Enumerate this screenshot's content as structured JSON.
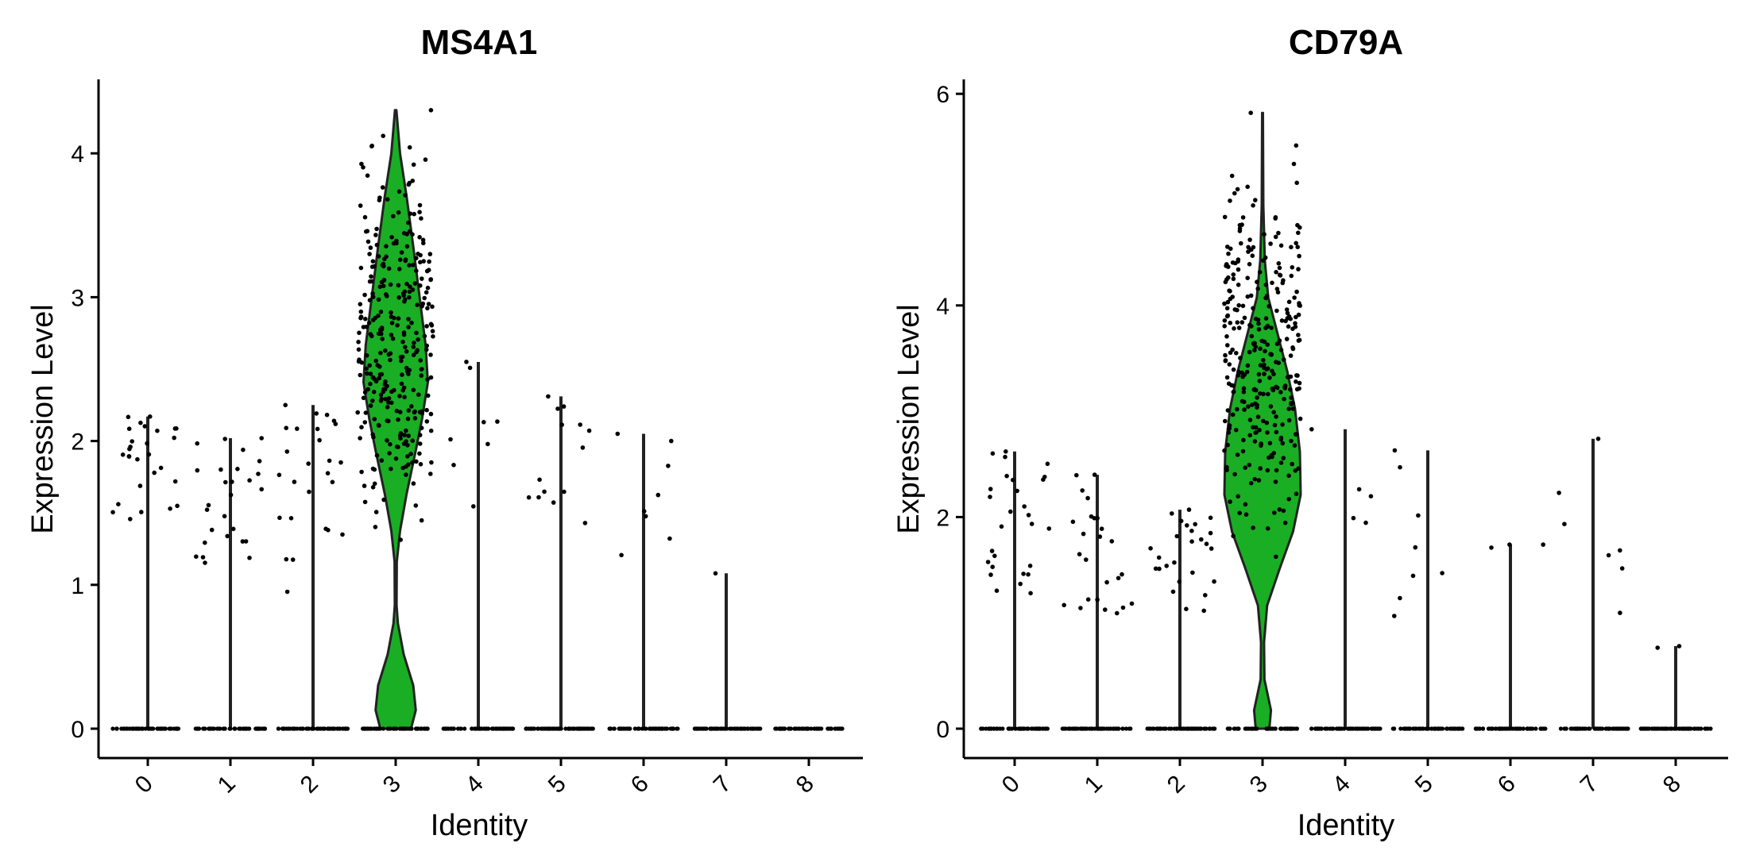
{
  "chart_data": [
    {
      "type": "violin",
      "title": "MS4A1",
      "xlabel": "Identity",
      "ylabel": "Expression Level",
      "categories": [
        "0",
        "1",
        "2",
        "3",
        "4",
        "5",
        "6",
        "7",
        "8"
      ],
      "yticks": [
        0,
        1,
        2,
        3,
        4
      ],
      "ylim": [
        -0.22,
        4.5
      ],
      "max_values": [
        2.17,
        2.02,
        2.25,
        4.3,
        2.55,
        2.31,
        2.05,
        1.08,
        0.0
      ],
      "nonzero_range": [
        [
          1.45,
          2.17
        ],
        [
          1.12,
          2.02
        ],
        [
          0.95,
          2.25
        ],
        [
          1.05,
          4.3
        ],
        [
          1.35,
          2.55
        ],
        [
          1.08,
          2.31
        ],
        [
          1.2,
          2.05
        ],
        [
          1.08,
          1.08
        ],
        [
          0,
          0
        ]
      ],
      "nonzero_counts": [
        28,
        27,
        26,
        320,
        8,
        14,
        8,
        1,
        0
      ],
      "violin_color": "#1aae24",
      "grid": false,
      "legend": "none"
    },
    {
      "type": "violin",
      "title": "CD79A",
      "xlabel": "Identity",
      "ylabel": "Expression Level",
      "categories": [
        "0",
        "1",
        "2",
        "3",
        "4",
        "5",
        "6",
        "7",
        "8"
      ],
      "yticks": [
        0,
        2,
        4,
        6
      ],
      "ylim": [
        -0.3,
        6.1
      ],
      "max_values": [
        2.62,
        2.4,
        2.07,
        5.82,
        2.83,
        2.63,
        1.74,
        2.74,
        0.78
      ],
      "nonzero_range": [
        [
          1.25,
          2.62
        ],
        [
          1.08,
          2.4
        ],
        [
          1.08,
          2.07
        ],
        [
          1.3,
          5.82
        ],
        [
          1.72,
          2.83
        ],
        [
          1.05,
          2.63
        ],
        [
          1.65,
          1.74
        ],
        [
          0.97,
          2.74
        ],
        [
          0.76,
          0.78
        ]
      ],
      "nonzero_counts": [
        28,
        25,
        26,
        320,
        5,
        8,
        3,
        7,
        2
      ],
      "violin_color": "#1aae24",
      "grid": false,
      "legend": "none"
    }
  ]
}
